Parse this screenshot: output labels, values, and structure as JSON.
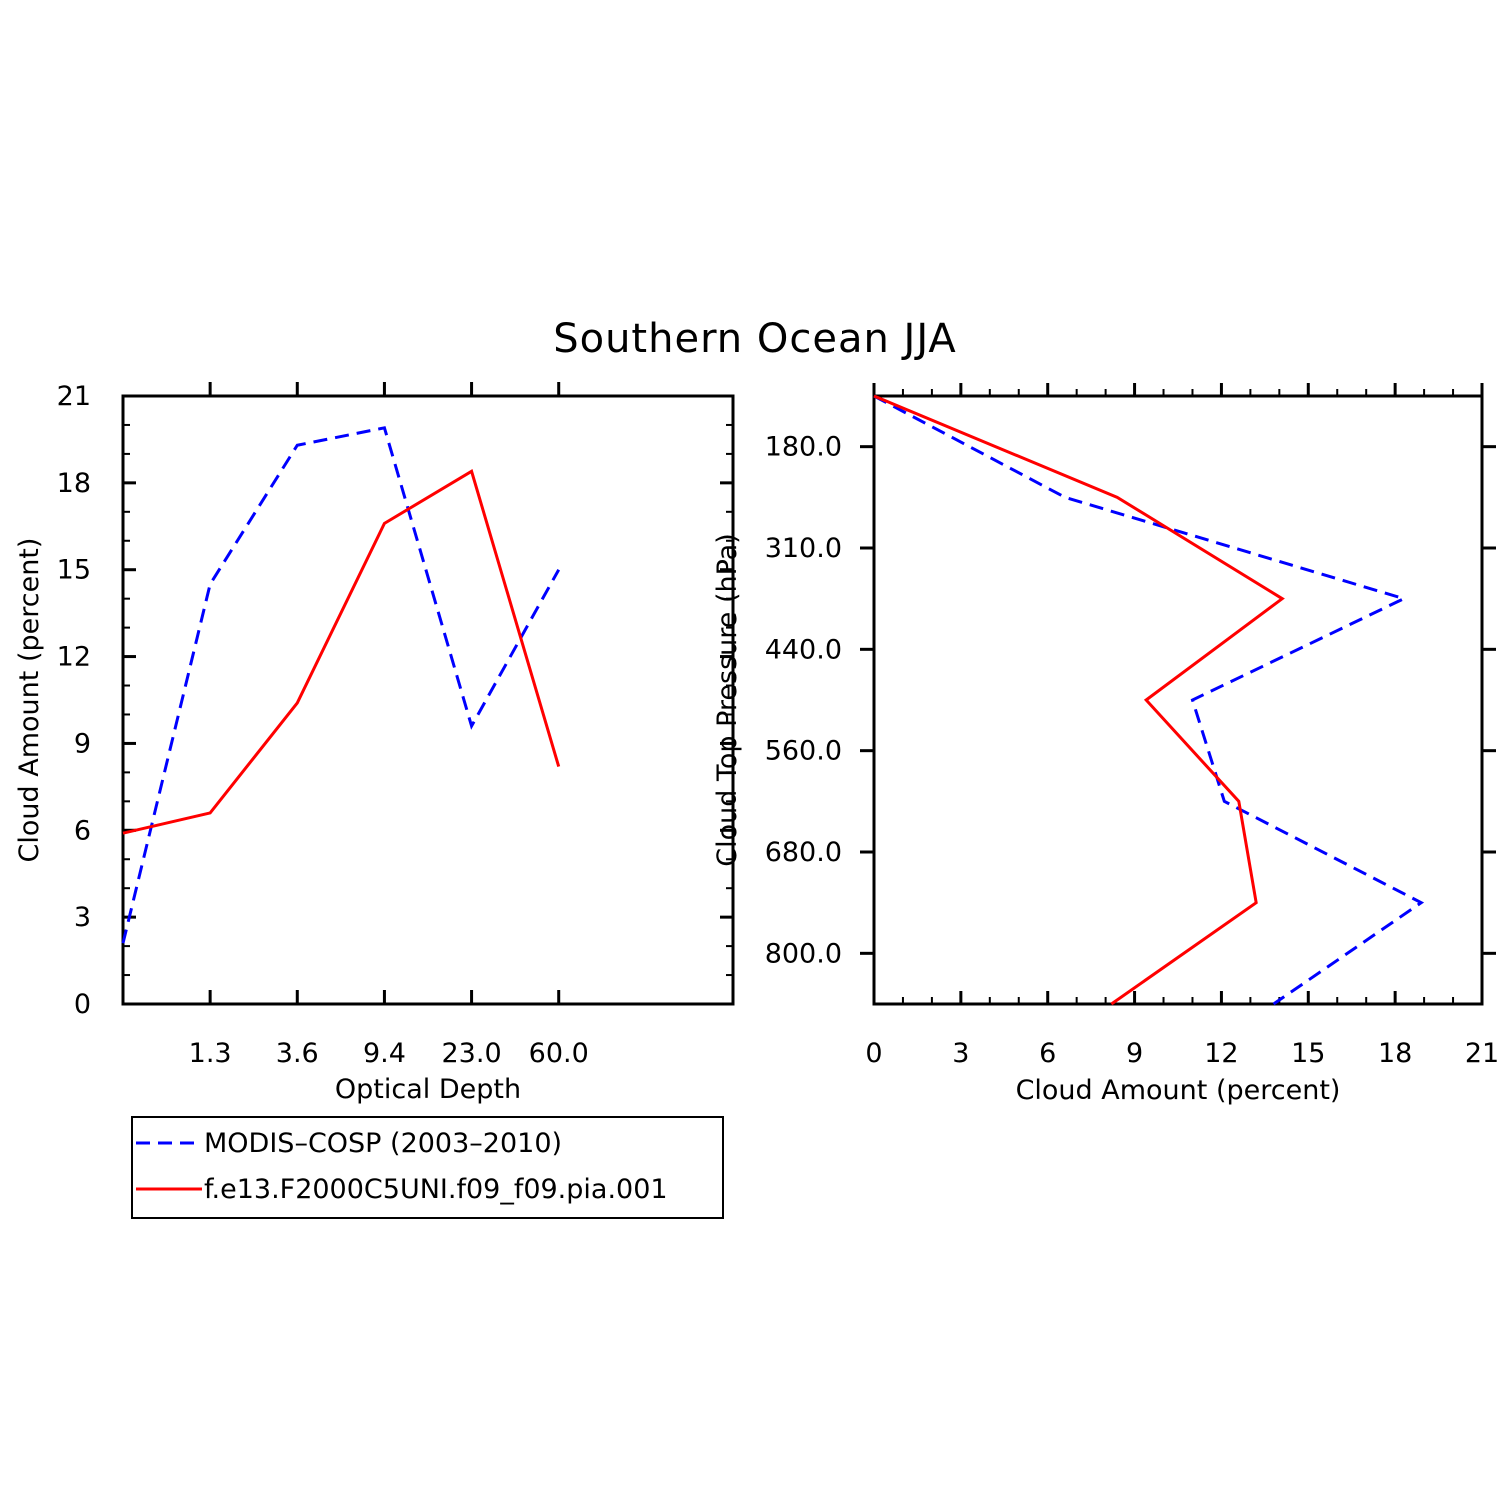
{
  "title": "Southern Ocean JJA",
  "colors": {
    "obs": "#0000ff",
    "model": "#ff0000"
  },
  "legend": {
    "entries": [
      {
        "label": "MODIS–COSP (2003–2010)",
        "style": "dashed",
        "color": "#0000ff"
      },
      {
        "label": "f.e13.F2000C5UNI.f09_f09.pia.001",
        "style": "solid",
        "color": "#ff0000"
      }
    ]
  },
  "chart_data": [
    {
      "type": "line",
      "xlabel": "Optical Depth",
      "ylabel": "Cloud Amount (percent)",
      "x_tick_labels": [
        "1.3",
        "3.6",
        "9.4",
        "23.0",
        "60.0"
      ],
      "y_tick_labels": [
        "0",
        "3",
        "6",
        "9",
        "12",
        "15",
        "18",
        "21"
      ],
      "ylim": [
        0,
        21
      ],
      "x_bins": 7,
      "series": [
        {
          "name": "MODIS–COSP (2003–2010)",
          "values": [
            2.1,
            14.5,
            19.3,
            19.9,
            9.6,
            15.0
          ],
          "bin_positions": [
            0,
            1,
            2,
            3,
            4,
            5
          ]
        },
        {
          "name": "f.e13.F2000C5UNI.f09_f09.pia.001",
          "values": [
            5.9,
            6.6,
            10.4,
            16.6,
            18.4,
            8.2
          ],
          "bin_positions": [
            0,
            1,
            2,
            3,
            4,
            5
          ]
        }
      ]
    },
    {
      "type": "line",
      "xlabel": "Cloud Amount (percent)",
      "ylabel": "Cloud Top Pressure (hPa)",
      "x_tick_labels": [
        "0",
        "3",
        "6",
        "9",
        "12",
        "15",
        "18",
        "21"
      ],
      "y_tick_labels": [
        "180.0",
        "310.0",
        "440.0",
        "560.0",
        "680.0",
        "800.0"
      ],
      "xlim": [
        0,
        21
      ],
      "y_bins": 6,
      "series": [
        {
          "name": "MODIS–COSP (2003–2010)",
          "values": [
            0,
            6.6,
            18.3,
            11.0,
            12.1,
            18.9,
            13.8
          ],
          "levels": [
            0,
            1,
            2,
            3,
            4,
            5,
            6
          ]
        },
        {
          "name": "f.e13.F2000C5UNI.f09_f09.pia.001",
          "values": [
            0,
            8.4,
            14.1,
            9.4,
            12.6,
            13.2,
            8.2
          ],
          "levels": [
            0,
            1,
            2,
            3,
            4,
            5,
            6
          ]
        }
      ]
    }
  ]
}
